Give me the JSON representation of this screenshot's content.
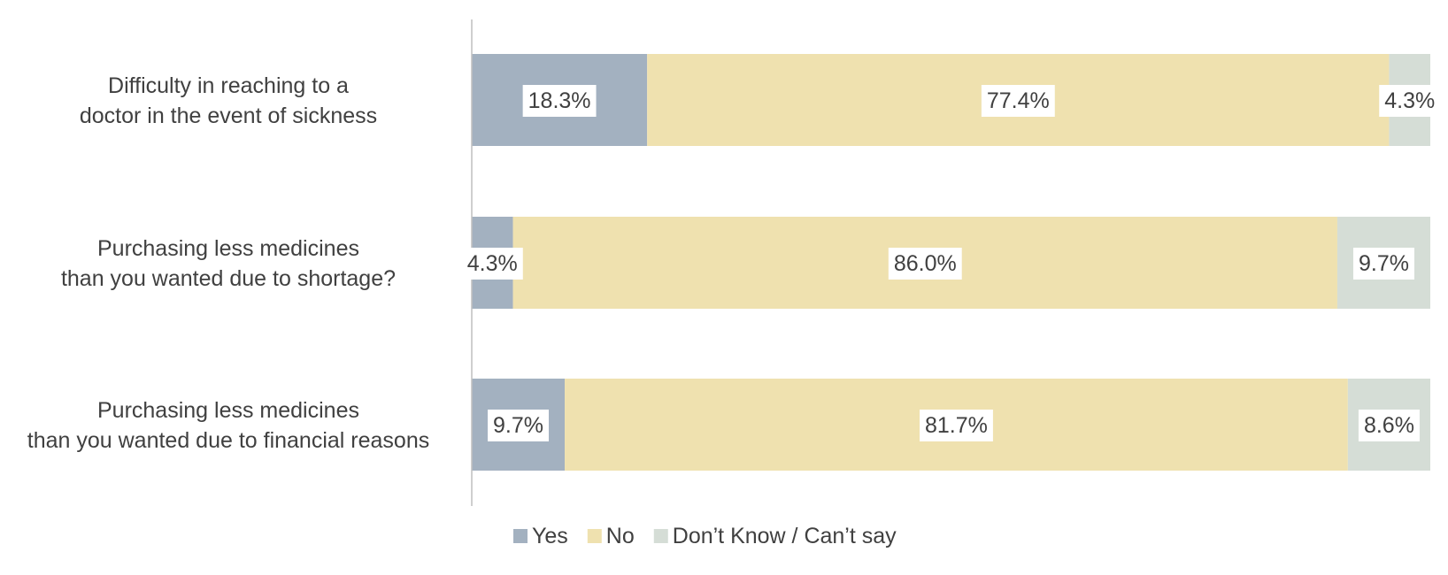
{
  "chart_data": {
    "type": "bar",
    "orientation": "horizontal",
    "stacked": "100%",
    "categories": [
      [
        "Difficulty in reaching to a",
        "doctor in the event of sickness"
      ],
      [
        "Purchasing less medicines",
        "than you wanted due to shortage?"
      ],
      [
        "Purchasing less medicines",
        "than you wanted due to financial reasons"
      ]
    ],
    "series": [
      {
        "name": "Yes",
        "color": "#a3b1c0",
        "values": [
          18.3,
          4.3,
          9.7
        ],
        "labels": [
          "18.3%",
          "4.3%",
          "9.7%"
        ]
      },
      {
        "name": "No",
        "color": "#efe1af",
        "values": [
          77.4,
          86.0,
          81.7
        ],
        "labels": [
          "77.4%",
          "86.0%",
          "81.7%"
        ]
      },
      {
        "name": "Don’t Know / Can’t say",
        "color": "#d5ddd6",
        "values": [
          4.3,
          9.7,
          8.6
        ],
        "labels": [
          "4.3%",
          "9.7%",
          "8.6%"
        ]
      }
    ],
    "xlim": [
      0,
      100
    ],
    "grid": false,
    "legend_position": "bottom"
  }
}
